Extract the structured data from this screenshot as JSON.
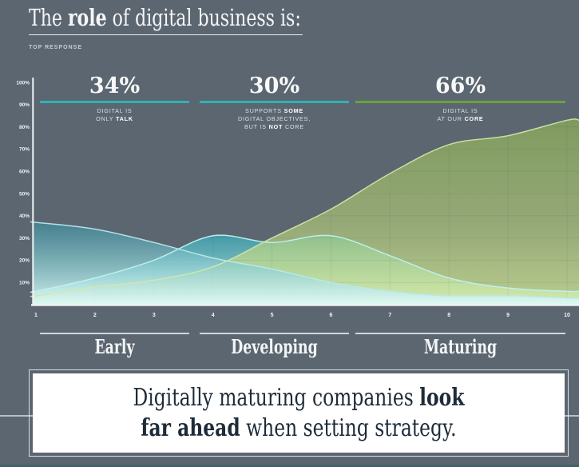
{
  "title": {
    "pre": "The ",
    "bold": "role",
    "post": " of digital business is:"
  },
  "subtitle": "TOP RESPONSE",
  "sections": [
    {
      "value": "34%",
      "accent": "#2eb3b2",
      "span": [
        50,
        237
      ],
      "caption": [
        [
          {
            "t": "DIGITAL IS"
          }
        ],
        [
          {
            "t": "ONLY "
          },
          {
            "t": "TALK",
            "b": true
          }
        ]
      ],
      "stage_label": "Early"
    },
    {
      "value": "30%",
      "accent": "#2eb3b2",
      "span": [
        250,
        437
      ],
      "caption": [
        [
          {
            "t": "SUPPORTS "
          },
          {
            "t": "SOME",
            "b": true
          }
        ],
        [
          {
            "t": "DIGITAL OBJECTIVES,"
          }
        ],
        [
          {
            "t": "BUT IS "
          },
          {
            "t": "NOT",
            "b": true
          },
          {
            "t": " CORE"
          }
        ]
      ],
      "stage_label": "Developing"
    },
    {
      "value": "66%",
      "accent": "#68a33c",
      "span": [
        445,
        708
      ],
      "caption": [
        [
          {
            "t": "DIGITAL IS"
          }
        ],
        [
          {
            "t": "AT OUR "
          },
          {
            "t": "CORE",
            "b": true
          }
        ]
      ],
      "stage_label": "Maturing"
    }
  ],
  "chart_data": {
    "type": "area",
    "x": [
      1,
      2,
      3,
      4,
      5,
      6,
      7,
      8,
      9,
      10
    ],
    "xticks": [
      "1",
      "2",
      "3",
      "4",
      "5",
      "6",
      "7",
      "8",
      "9",
      "10"
    ],
    "yticks": [
      "10%",
      "20%",
      "30%",
      "40%",
      "50%",
      "60%",
      "70%",
      "80%",
      "90%",
      "100%"
    ],
    "ylim": [
      0,
      100
    ],
    "series": [
      {
        "name": "Supports some digital objectives, but is not core",
        "values": [
          6,
          12,
          20,
          31,
          28,
          31,
          22,
          12,
          7.5,
          6
        ],
        "fill_top": "rgba(55,182,195,0.65)",
        "fill_mid": "rgba(150,224,226,0.75)",
        "fill_bottom": "rgba(235,253,251,0.9)",
        "stroke": "rgba(189,242,242,0.95)"
      },
      {
        "name": "Digital is at our core",
        "values": [
          4,
          8,
          11,
          17,
          30,
          43,
          59,
          72,
          76,
          83
        ],
        "fill_top": "rgba(138,172,88,0.74)",
        "fill_mid": "rgba(183,208,122,0.62)",
        "fill_bottom": "rgba(210,232,152,0.8)",
        "stroke": "rgba(212,233,167,0.9)"
      },
      {
        "name": "Digital is only talk",
        "values": [
          37,
          34,
          28,
          21,
          16,
          10,
          6,
          4,
          4,
          3
        ],
        "fill_top": "rgba(60,140,158,0.66)",
        "fill_mid": "rgba(145,207,210,0.78)",
        "fill_bottom": "rgba(224,250,247,0.92)",
        "stroke": "rgba(183,233,236,0.95)"
      }
    ]
  },
  "callout": {
    "line1_normal": "Digitally maturing companies ",
    "line1_bold": "look",
    "line2_bold": "far ahead",
    "line2_normal": " when setting strategy."
  }
}
